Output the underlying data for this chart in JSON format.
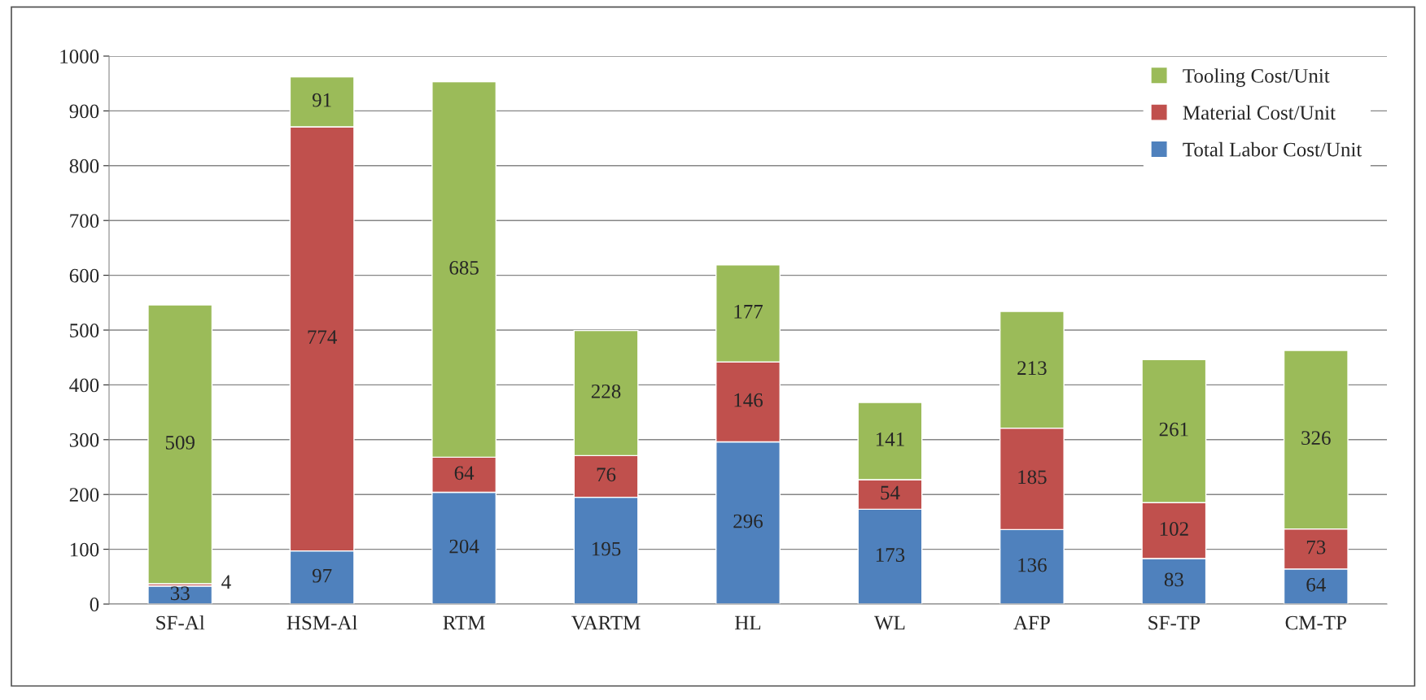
{
  "chart_data": {
    "type": "bar",
    "stacked": true,
    "data_labels": true,
    "categories": [
      "SF-Al",
      "HSM-Al",
      "RTM",
      "VARTM",
      "HL",
      "WL",
      "AFP",
      "SF-TP",
      "CM-TP"
    ],
    "series": [
      {
        "name": "Total Labor Cost/Unit",
        "color": "#4f81bd",
        "values": [
          33,
          97,
          204,
          195,
          296,
          173,
          136,
          83,
          64
        ]
      },
      {
        "name": "Material Cost/Unit",
        "color": "#c0504d",
        "values": [
          4,
          774,
          64,
          76,
          146,
          54,
          185,
          102,
          73
        ]
      },
      {
        "name": "Tooling Cost/Unit",
        "color": "#9bbb59",
        "values": [
          509,
          91,
          685,
          228,
          177,
          141,
          213,
          261,
          326
        ]
      }
    ],
    "ylim": [
      0,
      1000
    ],
    "yticks": [
      0,
      100,
      200,
      300,
      400,
      500,
      600,
      700,
      800,
      900,
      1000
    ],
    "grid": "y",
    "legend": "top right"
  }
}
